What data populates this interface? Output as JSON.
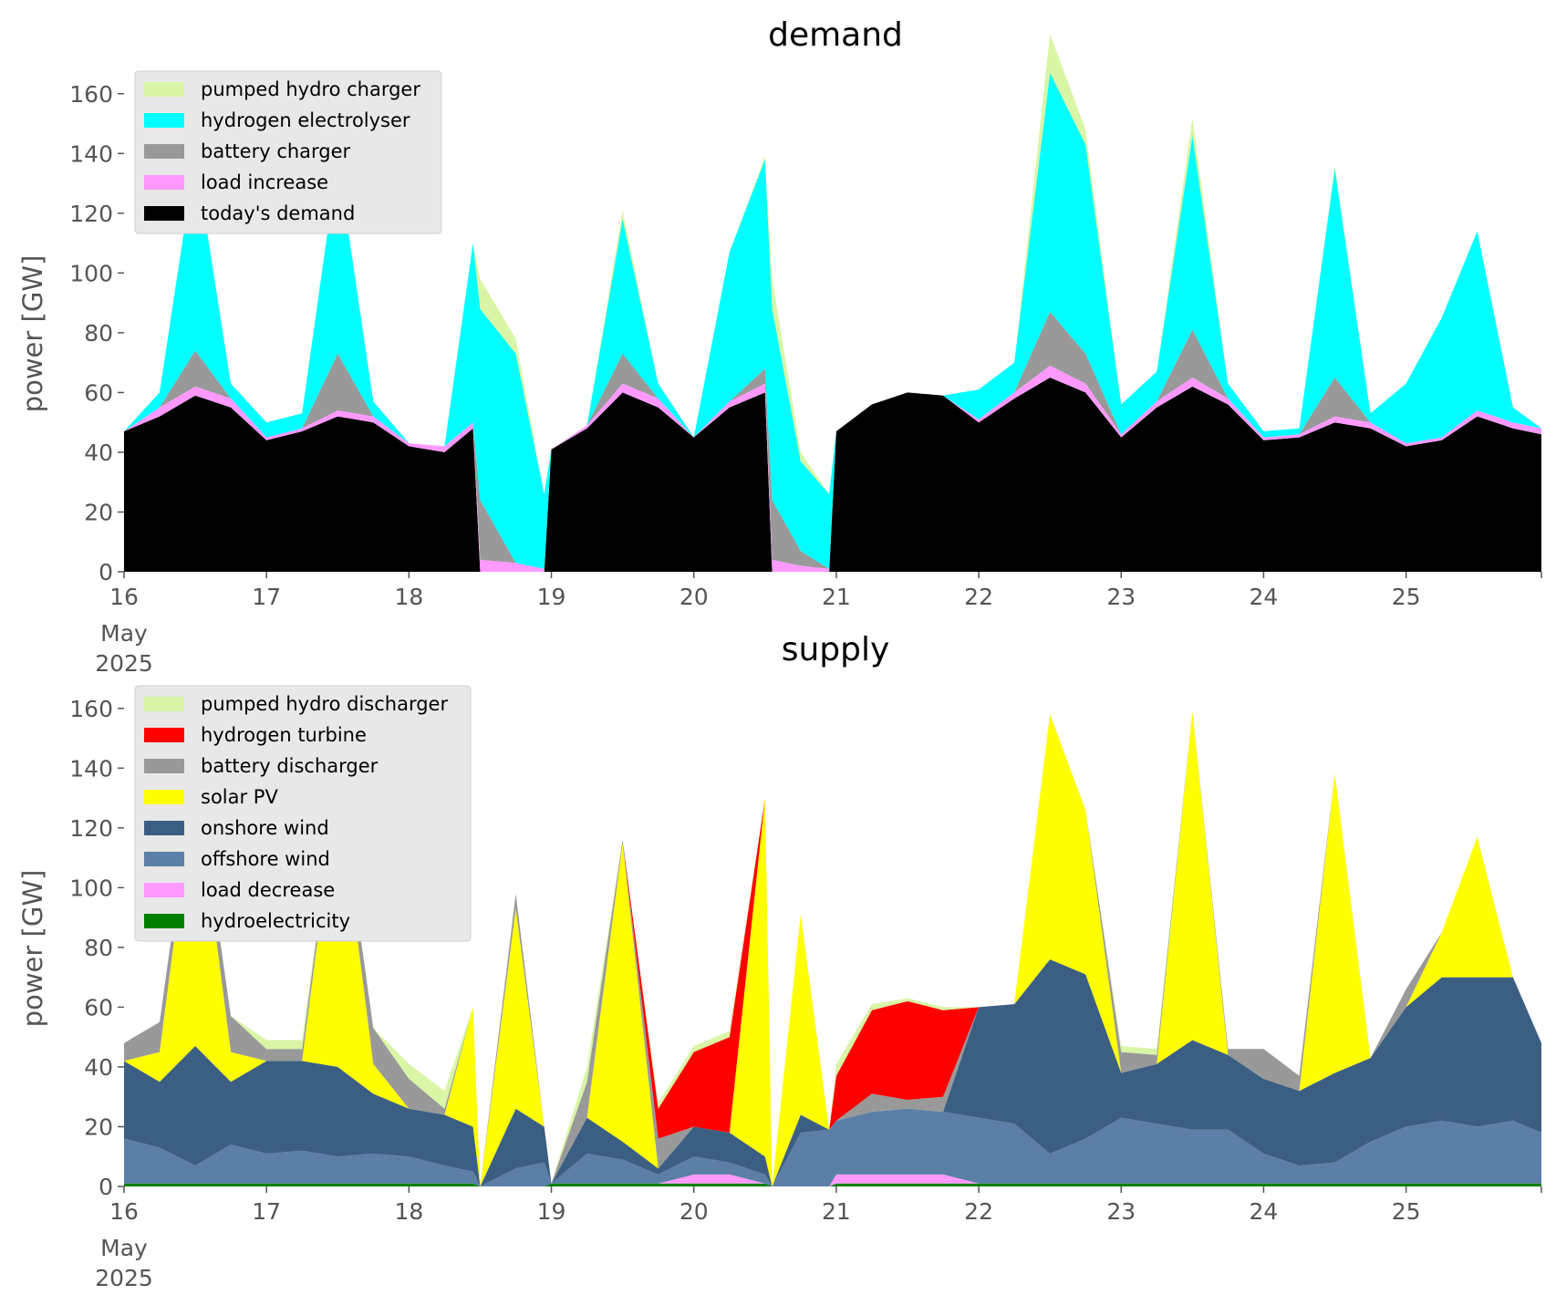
{
  "chart_data": [
    {
      "type": "area",
      "title": "demand",
      "xlabel": "",
      "ylabel": "power [GW]",
      "ylim": [
        0,
        170
      ],
      "yticks": [
        0,
        20,
        40,
        60,
        80,
        100,
        120,
        140,
        160
      ],
      "xlim": [
        16,
        25.95
      ],
      "xticks": [
        16,
        17,
        18,
        19,
        20,
        21,
        22,
        23,
        24,
        25
      ],
      "xtick_labels": [
        "16",
        "17",
        "18",
        "19",
        "20",
        "21",
        "22",
        "23",
        "24",
        "25"
      ],
      "x_sublabels": [
        "May",
        "2025"
      ],
      "grid": false,
      "legend": "top-left",
      "x": [
        16.0,
        16.25,
        16.5,
        16.75,
        17.0,
        17.25,
        17.5,
        17.75,
        18.0,
        18.25,
        18.45,
        18.5,
        18.75,
        18.95,
        19.0,
        19.25,
        19.5,
        19.75,
        20.0,
        20.25,
        20.5,
        20.55,
        20.75,
        20.95,
        21.0,
        21.25,
        21.5,
        21.75,
        22.0,
        22.25,
        22.5,
        22.75,
        23.0,
        23.25,
        23.5,
        23.75,
        24.0,
        24.25,
        24.5,
        24.75,
        25.0,
        25.25,
        25.5,
        25.75,
        25.95
      ],
      "series": [
        {
          "name": "today's demand",
          "color": "#000000",
          "values": [
            47,
            52,
            59,
            55,
            44,
            47,
            52,
            50,
            42,
            40,
            48,
            0,
            0,
            0,
            41,
            48,
            60,
            55,
            45,
            55,
            60,
            0,
            0,
            0,
            47,
            56,
            60,
            59,
            50,
            58,
            65,
            60,
            45,
            55,
            62,
            56,
            44,
            45,
            50,
            48,
            42,
            44,
            52,
            48,
            46
          ]
        },
        {
          "name": "load increase",
          "color": "#ff99ff",
          "values": [
            0,
            3,
            3,
            3,
            1,
            1,
            2,
            2,
            1,
            2,
            2,
            4,
            3,
            1,
            0,
            1,
            3,
            3,
            0,
            2,
            3,
            4,
            2,
            1,
            0,
            0,
            0,
            0,
            1,
            2,
            4,
            3,
            1,
            2,
            3,
            2,
            1,
            1,
            2,
            2,
            1,
            1,
            2,
            2,
            2
          ]
        },
        {
          "name": "battery charger",
          "color": "#999999",
          "values": [
            0,
            0,
            12,
            0,
            0,
            0,
            19,
            0,
            0,
            0,
            0,
            20,
            0,
            0,
            0,
            0,
            10,
            0,
            0,
            0,
            5,
            20,
            5,
            0,
            0,
            0,
            0,
            0,
            0,
            0,
            18,
            10,
            0,
            0,
            16,
            0,
            0,
            0,
            13,
            0,
            0,
            0,
            0,
            0,
            0
          ]
        },
        {
          "name": "hydrogen electrolyser",
          "color": "#00ffff",
          "values": [
            0,
            5,
            65,
            5,
            5,
            5,
            65,
            5,
            0,
            0,
            60,
            64,
            70,
            25,
            0,
            0,
            45,
            5,
            0,
            50,
            70,
            64,
            30,
            25,
            0,
            0,
            0,
            0,
            10,
            10,
            80,
            70,
            10,
            10,
            65,
            5,
            2,
            2,
            70,
            3,
            20,
            40,
            60,
            5,
            0
          ]
        },
        {
          "name": "pumped hydro charger",
          "color": "#d9f5a6",
          "values": [
            0,
            0,
            0,
            0,
            0,
            0,
            0,
            0,
            0,
            0,
            0,
            10,
            5,
            0,
            0,
            0,
            3,
            0,
            0,
            0,
            1,
            10,
            3,
            0,
            0,
            0,
            0,
            0,
            0,
            0,
            13,
            5,
            0,
            0,
            6,
            0,
            0,
            0,
            1,
            0,
            0,
            0,
            0,
            0,
            0
          ]
        }
      ],
      "legend_order": [
        "pumped hydro charger",
        "hydrogen electrolyser",
        "battery charger",
        "load increase",
        "today's demand"
      ]
    },
    {
      "type": "area",
      "title": "supply",
      "xlabel": "",
      "ylabel": "power [GW]",
      "ylim": [
        0,
        170
      ],
      "yticks": [
        0,
        20,
        40,
        60,
        80,
        100,
        120,
        140,
        160
      ],
      "xlim": [
        16,
        25.95
      ],
      "xticks": [
        16,
        17,
        18,
        19,
        20,
        21,
        22,
        23,
        24,
        25
      ],
      "xtick_labels": [
        "16",
        "17",
        "18",
        "19",
        "20",
        "21",
        "22",
        "23",
        "24",
        "25"
      ],
      "x_sublabels": [
        "May",
        "2025"
      ],
      "grid": false,
      "legend": "top-left",
      "x": [
        16.0,
        16.25,
        16.5,
        16.75,
        17.0,
        17.25,
        17.5,
        17.75,
        18.0,
        18.25,
        18.45,
        18.5,
        18.75,
        18.95,
        19.0,
        19.25,
        19.5,
        19.75,
        20.0,
        20.25,
        20.5,
        20.55,
        20.75,
        20.95,
        21.0,
        21.25,
        21.5,
        21.75,
        22.0,
        22.25,
        22.5,
        22.75,
        23.0,
        23.25,
        23.5,
        23.75,
        24.0,
        24.25,
        24.5,
        24.75,
        25.0,
        25.25,
        25.5,
        25.75,
        25.95
      ],
      "series": [
        {
          "name": "hydroelectricity",
          "color": "#008000",
          "values": [
            1,
            1,
            1,
            1,
            1,
            1,
            1,
            1,
            1,
            1,
            1,
            0,
            0,
            0,
            1,
            1,
            1,
            1,
            1,
            1,
            1,
            0,
            0,
            0,
            1,
            1,
            1,
            1,
            1,
            1,
            1,
            1,
            1,
            1,
            1,
            1,
            1,
            1,
            1,
            1,
            1,
            1,
            1,
            1,
            1
          ]
        },
        {
          "name": "load decrease",
          "color": "#ff99ff",
          "values": [
            0,
            0,
            0,
            0,
            0,
            0,
            0,
            0,
            0,
            0,
            0,
            0,
            0,
            0,
            0,
            0,
            0,
            0,
            3,
            3,
            0,
            0,
            0,
            0,
            3,
            3,
            3,
            3,
            0,
            0,
            0,
            0,
            0,
            0,
            0,
            0,
            0,
            0,
            0,
            0,
            0,
            0,
            0,
            0,
            0
          ]
        },
        {
          "name": "offshore wind",
          "color": "#5b7fa6",
          "values": [
            15,
            12,
            6,
            13,
            10,
            11,
            9,
            10,
            9,
            6,
            4,
            0,
            6,
            8,
            0,
            10,
            8,
            3,
            6,
            4,
            3,
            0,
            18,
            19,
            18,
            21,
            22,
            21,
            22,
            20,
            10,
            15,
            22,
            20,
            18,
            18,
            10,
            6,
            7,
            14,
            19,
            21,
            19,
            21,
            17
          ]
        },
        {
          "name": "onshore wind",
          "color": "#3b5f82",
          "values": [
            26,
            22,
            40,
            21,
            31,
            30,
            30,
            20,
            16,
            17,
            15,
            0,
            20,
            12,
            0,
            12,
            6,
            2,
            10,
            10,
            6,
            0,
            6,
            0,
            0,
            0,
            0,
            0,
            37,
            40,
            65,
            55,
            15,
            20,
            30,
            25,
            25,
            25,
            30,
            28,
            40,
            48,
            50,
            48,
            30
          ]
        },
        {
          "name": "solar PV",
          "color": "#ffff00",
          "values": [
            0,
            10,
            90,
            10,
            0,
            0,
            95,
            10,
            0,
            0,
            40,
            0,
            67,
            0,
            0,
            0,
            100,
            0,
            0,
            0,
            120,
            0,
            67,
            0,
            0,
            0,
            0,
            0,
            0,
            0,
            82,
            55,
            0,
            0,
            110,
            0,
            0,
            0,
            100,
            0,
            0,
            15,
            47,
            0,
            0
          ]
        },
        {
          "name": "battery discharger",
          "color": "#999999",
          "values": [
            6,
            10,
            4,
            12,
            4,
            4,
            3,
            12,
            10,
            2,
            0,
            0,
            5,
            0,
            0,
            12,
            1,
            10,
            0,
            0,
            0,
            0,
            0,
            0,
            0,
            6,
            3,
            5,
            0,
            0,
            0,
            0,
            7,
            3,
            0,
            2,
            10,
            5,
            0,
            0,
            6,
            0,
            0,
            0,
            0
          ]
        },
        {
          "name": "hydrogen turbine",
          "color": "#ff0000",
          "values": [
            0,
            0,
            0,
            0,
            0,
            0,
            0,
            0,
            0,
            0,
            0,
            0,
            0,
            0,
            0,
            0,
            0,
            10,
            25,
            32,
            0,
            0,
            0,
            0,
            15,
            28,
            33,
            29,
            0,
            0,
            0,
            0,
            0,
            0,
            0,
            0,
            0,
            0,
            0,
            0,
            0,
            0,
            0,
            0,
            0
          ]
        },
        {
          "name": "pumped hydro discharger",
          "color": "#d9f5a6",
          "values": [
            0,
            0,
            0,
            0,
            3,
            3,
            0,
            0,
            5,
            6,
            0,
            0,
            0,
            0,
            0,
            5,
            0,
            2,
            2,
            2,
            0,
            0,
            0,
            0,
            4,
            2,
            1,
            1,
            0,
            0,
            0,
            0,
            2,
            2,
            0,
            0,
            0,
            0,
            0,
            0,
            0,
            0,
            0,
            0,
            0
          ]
        }
      ],
      "legend_order": [
        "pumped hydro discharger",
        "hydrogen turbine",
        "battery discharger",
        "solar PV",
        "onshore wind",
        "offshore wind",
        "load decrease",
        "hydroelectricity"
      ]
    }
  ]
}
